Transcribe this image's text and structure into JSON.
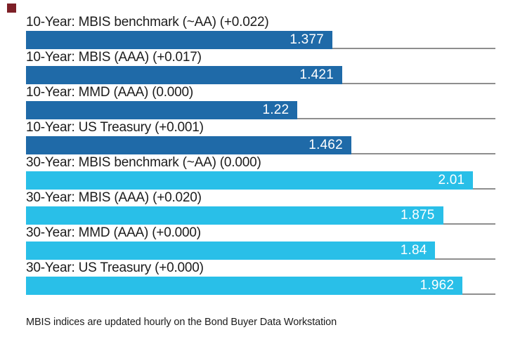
{
  "colors": {
    "ten_year_bar": "#1F6AA8",
    "thirty_year_bar": "#29BFE8",
    "separator_line": "#8E8E8E",
    "label_text": "#1C1C1C",
    "value_text": "#FFFFFF",
    "corner_mark": "#7D2027"
  },
  "chart_data": {
    "type": "bar",
    "orientation": "horizontal",
    "xlim": [
      0,
      2.11
    ],
    "grid": false,
    "legend": false,
    "rows": [
      {
        "label": "10-Year: MBIS benchmark (~AA) (+0.022)",
        "value": 1.377,
        "value_label": "1.377",
        "group": "10-year"
      },
      {
        "label": "10-Year: MBIS (AAA) (+0.017)",
        "value": 1.421,
        "value_label": "1.421",
        "group": "10-year"
      },
      {
        "label": "10-Year: MMD (AAA) (0.000)",
        "value": 1.22,
        "value_label": "1.22",
        "group": "10-year"
      },
      {
        "label": "10-Year: US Treasury (+0.001)",
        "value": 1.462,
        "value_label": "1.462",
        "group": "10-year"
      },
      {
        "label": "30-Year: MBIS benchmark (~AA) (0.000)",
        "value": 2.01,
        "value_label": "2.01",
        "group": "30-year"
      },
      {
        "label": "30-Year: MBIS (AAA) (+0.020)",
        "value": 1.875,
        "value_label": "1.875",
        "group": "30-year"
      },
      {
        "label": "30-Year: MMD (AAA) (+0.000)",
        "value": 1.84,
        "value_label": "1.84",
        "group": "30-year"
      },
      {
        "label": "30-Year: US Treasury (+0.000)",
        "value": 1.962,
        "value_label": "1.962",
        "group": "30-year"
      }
    ],
    "footnote": "MBIS indices are updated hourly on the Bond Buyer Data Workstation"
  }
}
